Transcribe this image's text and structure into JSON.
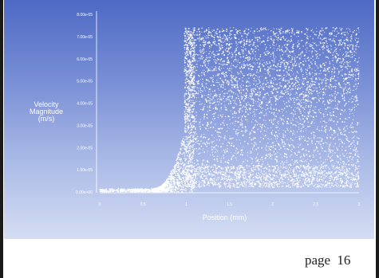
{
  "page": {
    "label": "page 16"
  },
  "chart_data": {
    "type": "scatter",
    "title": "",
    "xlabel": "Position (mm)",
    "ylabel": [
      "Velocity",
      "Magnitude",
      "(m/s)"
    ],
    "xlim": [
      0,
      3
    ],
    "ylim": [
      0,
      8e-05
    ],
    "x_ticks": [
      0,
      0.5,
      1,
      1.5,
      2,
      2.5,
      3
    ],
    "x_tick_labels": [
      "0",
      "0.5",
      "1",
      "1.5",
      "2",
      "2.5",
      "3"
    ],
    "y_ticks": [
      0,
      1e-05,
      2e-05,
      3e-05,
      4e-05,
      5e-05,
      6e-05,
      7e-05,
      8e-05
    ],
    "y_tick_labels": [
      "0.00e+00",
      "1.00e-05",
      "2.00e-05",
      "3.00e-05",
      "4.00e-05",
      "5.00e-05",
      "6.00e-05",
      "7.00e-05",
      "8.00e-05"
    ],
    "series": [
      {
        "marker_color": "#ffffff",
        "description_points": [
          {
            "x": 0.0,
            "y": 0.0
          },
          {
            "x": 0.6,
            "y": 0.0
          },
          {
            "x": 0.7,
            "y": 2e-06
          },
          {
            "x": 0.8,
            "y": 6e-06
          },
          {
            "x": 0.9,
            "y": 1.2e-05
          },
          {
            "x": 0.97,
            "y": 2e-05
          },
          {
            "x": 1.0,
            "y": 7.4e-05
          },
          {
            "x": 3.0,
            "y": 7.4e-05
          }
        ],
        "envelope": {
          "ramp_start_x": 0.6,
          "ramp_end_x": 0.98,
          "upper_limit_y": 7.4e-05,
          "lower_band_y": [
            2e-06,
            1.2e-05
          ]
        }
      }
    ],
    "grid": false,
    "legend": "none"
  }
}
